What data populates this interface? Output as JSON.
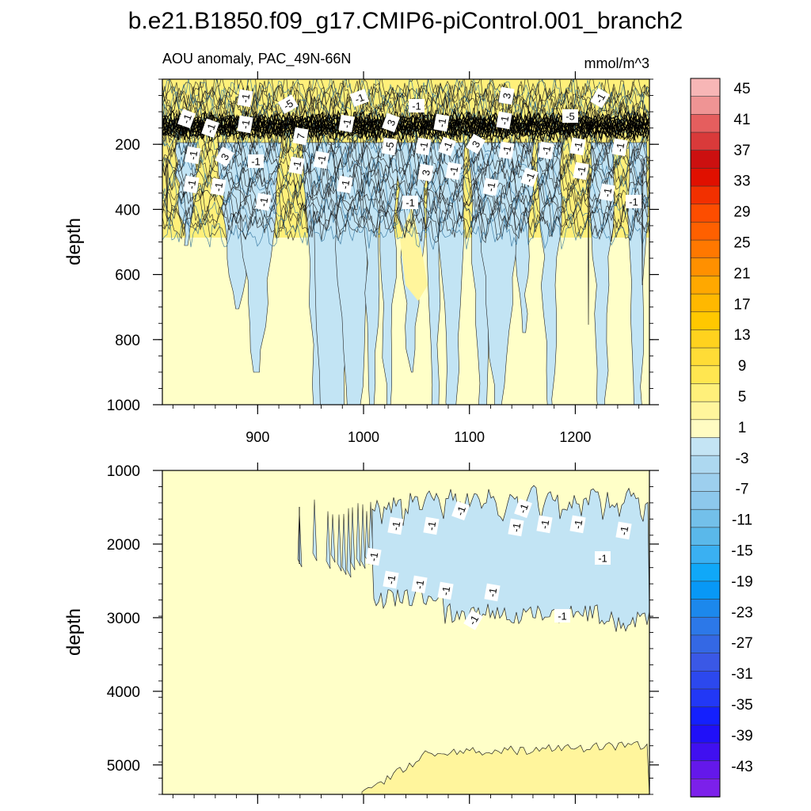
{
  "chart_data": [
    {
      "type": "heatmap",
      "title": "b.e21.B1850.f09_g17.CMIP6-piControl.001_branch2",
      "left_label": "AOU anomaly, PAC_49N-66N",
      "right_label": "mmol/m^3",
      "xlabel": "",
      "ylabel": "depth",
      "xlim": [
        810,
        1270
      ],
      "ylim": [
        0,
        1000
      ],
      "x_ticks": [
        900,
        1000,
        1100,
        1200
      ],
      "y_ticks": [
        200,
        400,
        600,
        800,
        1000
      ],
      "y_tick_labels": [
        "200",
        "400",
        "600",
        "800",
        "1000"
      ],
      "contour_labels": [
        "-1",
        "-1",
        "-1",
        "-1",
        "-5",
        "-1",
        "-1",
        "3",
        "-1",
        "-5",
        "-1",
        "7",
        "-1",
        "3",
        "-1",
        "-1",
        "3",
        "-1",
        "-1",
        "-1",
        "-5",
        "-1",
        "-1",
        "3",
        "-1",
        "-1",
        "-1",
        "-1",
        "-1",
        "-1",
        "-1",
        "3",
        "-1",
        "-1",
        "-1",
        "-1",
        "-1",
        "-1",
        "-1",
        "-1"
      ]
    },
    {
      "type": "heatmap",
      "xlabel": "",
      "ylabel": "depth",
      "xlim": [
        810,
        1270
      ],
      "ylim": [
        1000,
        5400
      ],
      "x_ticks": [
        900,
        1000,
        1100,
        1200
      ],
      "y_ticks": [
        1000,
        2000,
        3000,
        4000,
        5000
      ],
      "y_tick_labels": [
        "1000",
        "2000",
        "3000",
        "4000",
        "5000"
      ],
      "contour_labels": [
        "-1",
        "-1",
        "-1",
        "-1",
        "-1",
        "-1",
        "-1",
        "-1",
        "-1",
        "-1",
        "-1",
        "-1",
        "-1",
        "-1",
        "-1",
        "-1"
      ]
    }
  ],
  "colorbar": {
    "labels": [
      "45",
      "41",
      "37",
      "33",
      "29",
      "25",
      "21",
      "17",
      "13",
      "9",
      "5",
      "1",
      "-3",
      "-7",
      "-11",
      "-15",
      "-19",
      "-23",
      "-27",
      "-31",
      "-35",
      "-39",
      "-43"
    ],
    "colors": [
      "#f7b6b6",
      "#ef9494",
      "#e55e5e",
      "#d93a3a",
      "#cc1010",
      "#e01000",
      "#f23000",
      "#fd4d00",
      "#ff6000",
      "#ff7800",
      "#ff9000",
      "#ffa800",
      "#ffb800",
      "#ffc800",
      "#ffd21e",
      "#ffdc36",
      "#ffe650",
      "#fff07a",
      "#fff59c",
      "#fffcc2",
      "#c4e4f4",
      "#add8f0",
      "#9dcfee",
      "#8dc8ec",
      "#73c0ea",
      "#5ab8ea",
      "#3ab0f2",
      "#10a8f8",
      "#0898f6",
      "#1c88ec",
      "#2c78e8",
      "#3468e4",
      "#3a58e6",
      "#2c48ee",
      "#2238f6",
      "#1420fe",
      "#2010f8",
      "#4010f0",
      "#6418ea",
      "#7c20ea"
    ]
  },
  "colors": {
    "background": "#ffffc8",
    "negative_fill": "#c2e4f4",
    "positive_fill": "#fff59c",
    "dark": "#1a1a1a",
    "mid_blue": "#5ab8ea",
    "orange": "#ffa800"
  }
}
